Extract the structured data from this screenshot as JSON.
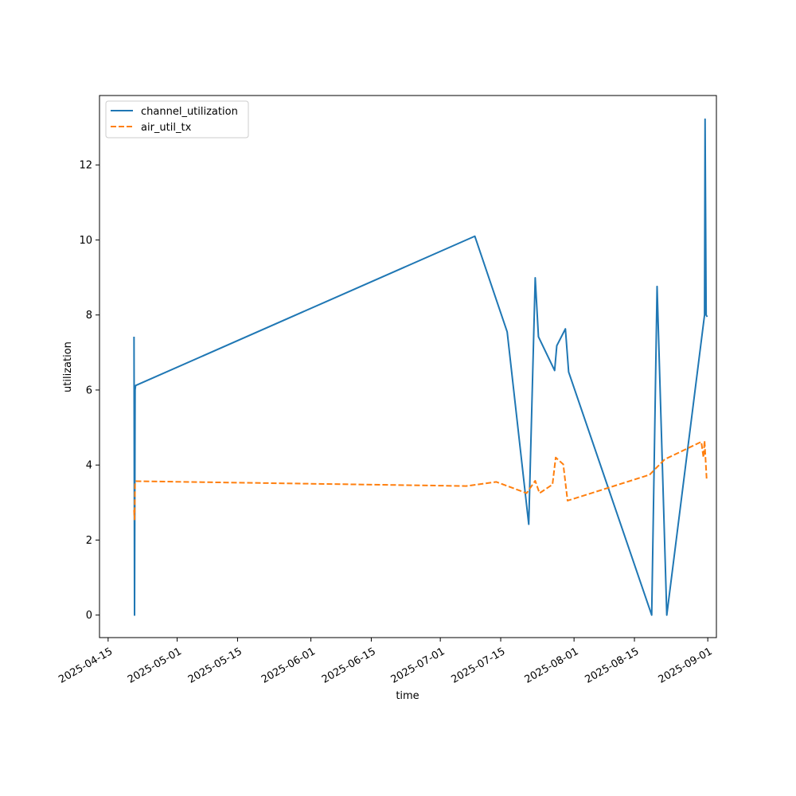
{
  "chart_data": {
    "type": "line",
    "title": "",
    "xlabel": "time",
    "ylabel": "utilization",
    "x_axis_type": "date",
    "xlim": [
      "2025-04-13",
      "2025-09-03"
    ],
    "ylim": [
      -0.6,
      13.85
    ],
    "x_ticks": [
      "2025-04-15",
      "2025-05-01",
      "2025-05-15",
      "2025-06-01",
      "2025-06-15",
      "2025-07-01",
      "2025-07-15",
      "2025-08-01",
      "2025-08-15",
      "2025-09-01"
    ],
    "y_ticks": [
      0,
      2,
      4,
      6,
      8,
      10,
      12
    ],
    "grid": false,
    "legend": "top-left",
    "series": [
      {
        "name": "channel_utilization",
        "color": "#1f77b4",
        "dash": "solid",
        "points": [
          [
            "2025-04-21 00:00",
            7.42
          ],
          [
            "2025-04-21 03:00",
            0.0
          ],
          [
            "2025-04-21 06:00",
            6.0
          ],
          [
            "2025-04-21 09:00",
            6.12
          ],
          [
            "2025-07-09 00:00",
            10.1
          ],
          [
            "2025-07-16 12:00",
            7.55
          ],
          [
            "2025-07-21 12:00",
            2.42
          ],
          [
            "2025-07-23 00:00",
            8.99
          ],
          [
            "2025-07-23 18:00",
            7.42
          ],
          [
            "2025-07-27 12:00",
            6.52
          ],
          [
            "2025-07-28 00:00",
            7.18
          ],
          [
            "2025-07-30 00:00",
            7.63
          ],
          [
            "2025-07-30 18:00",
            6.48
          ],
          [
            "2025-08-19 00:00",
            0.0
          ],
          [
            "2025-08-20 06:00",
            8.76
          ],
          [
            "2025-08-22 12:00",
            0.0
          ],
          [
            "2025-08-31 06:00",
            8.0
          ],
          [
            "2025-08-31 09:00",
            13.22
          ],
          [
            "2025-08-31 15:00",
            8.0
          ],
          [
            "2025-08-31 21:00",
            7.95
          ]
        ]
      },
      {
        "name": "air_util_tx",
        "color": "#ff7f0e",
        "dash": "dashed",
        "points": [
          [
            "2025-04-21 00:00",
            2.8
          ],
          [
            "2025-04-21 03:00",
            2.55
          ],
          [
            "2025-04-21 06:00",
            3.55
          ],
          [
            "2025-04-21 12:00",
            3.57
          ],
          [
            "2025-07-07 00:00",
            3.44
          ],
          [
            "2025-07-14 00:00",
            3.55
          ],
          [
            "2025-07-21 00:00",
            3.25
          ],
          [
            "2025-07-23 00:00",
            3.58
          ],
          [
            "2025-07-24 00:00",
            3.25
          ],
          [
            "2025-07-27 00:00",
            3.48
          ],
          [
            "2025-07-27 18:00",
            4.2
          ],
          [
            "2025-07-29 12:00",
            4.02
          ],
          [
            "2025-07-30 12:00",
            3.05
          ],
          [
            "2025-08-18 12:00",
            3.74
          ],
          [
            "2025-08-22 00:00",
            4.15
          ],
          [
            "2025-08-30 12:00",
            4.62
          ],
          [
            "2025-08-31 00:00",
            4.2
          ],
          [
            "2025-08-31 06:00",
            4.65
          ],
          [
            "2025-08-31 18:00",
            3.6
          ]
        ]
      }
    ]
  }
}
